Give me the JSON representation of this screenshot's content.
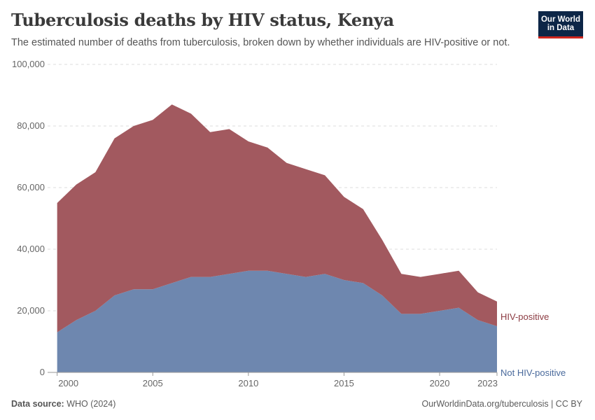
{
  "header": {
    "title": "Tuberculosis deaths by HIV status, Kenya",
    "subtitle": "The estimated number of deaths from tuberculosis, broken down by whether individuals are HIV-positive or not."
  },
  "logo": {
    "line1": "Our World",
    "line2": "in Data",
    "bg_color": "#0d2647",
    "accent_color": "#ce261e"
  },
  "footer": {
    "source_label": "Data source:",
    "source_value": "WHO (2024)",
    "credit": "OurWorldinData.org/tuberculosis | CC BY"
  },
  "chart_data": {
    "type": "area",
    "stacked": true,
    "x": [
      2000,
      2001,
      2002,
      2003,
      2004,
      2005,
      2006,
      2007,
      2008,
      2009,
      2010,
      2011,
      2012,
      2013,
      2014,
      2015,
      2016,
      2017,
      2018,
      2019,
      2020,
      2021,
      2022,
      2023
    ],
    "x_ticks": [
      2000,
      2005,
      2010,
      2015,
      2020,
      2023
    ],
    "y_ticks": [
      0,
      20000,
      40000,
      60000,
      80000,
      100000
    ],
    "y_tick_labels": [
      "0",
      "20,000",
      "40,000",
      "60,000",
      "80,000",
      "100,000"
    ],
    "xlim": [
      1999.5,
      2023
    ],
    "ylim": [
      0,
      100000
    ],
    "grid": "horizontal-dashed",
    "legend": "right-inline",
    "series": [
      {
        "name": "Not HIV-positive",
        "color": "#6e87af",
        "label_color": "#4a6a9c",
        "values": [
          13000,
          17000,
          20000,
          25000,
          27000,
          27000,
          29000,
          31000,
          31000,
          32000,
          33000,
          33000,
          32000,
          31000,
          32000,
          30000,
          29000,
          25000,
          19000,
          19000,
          20000,
          21000,
          17000,
          15000
        ]
      },
      {
        "name": "HIV-positive",
        "color": "#a2595f",
        "label_color": "#8c3b42",
        "values": [
          42000,
          44000,
          45000,
          51000,
          53000,
          55000,
          58000,
          53000,
          47000,
          47000,
          42000,
          40000,
          36000,
          35000,
          32000,
          27000,
          24000,
          18000,
          13000,
          12000,
          12000,
          12000,
          9000,
          8000
        ]
      }
    ]
  }
}
